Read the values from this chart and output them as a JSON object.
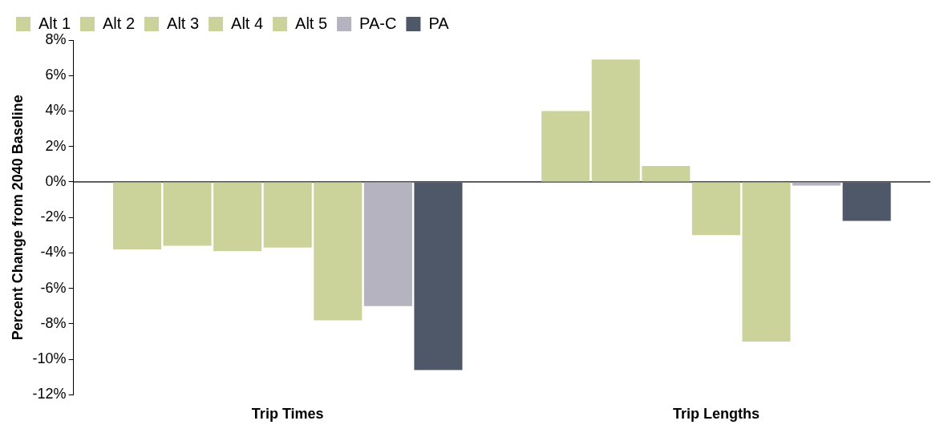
{
  "chart_data": {
    "type": "bar",
    "ylabel": "Percent Change from 2040 Baseline",
    "categories": [
      "Trip Times",
      "Trip Lengths"
    ],
    "series": [
      {
        "name": "Alt 1",
        "color": "#ccd39a",
        "values": [
          -3.8,
          4.0
        ]
      },
      {
        "name": "Alt 2",
        "color": "#ccd39a",
        "values": [
          -3.6,
          6.9
        ]
      },
      {
        "name": "Alt 3",
        "color": "#ccd39a",
        "values": [
          -3.9,
          0.9
        ]
      },
      {
        "name": "Alt 4",
        "color": "#ccd39a",
        "values": [
          -3.7,
          -3.0
        ]
      },
      {
        "name": "Alt 5",
        "color": "#ccd39a",
        "values": [
          -7.8,
          -9.0
        ]
      },
      {
        "name": "PA-C",
        "color": "#b4b3bf",
        "values": [
          -7.0,
          -0.2
        ]
      },
      {
        "name": "PA",
        "color": "#4f5869",
        "values": [
          -10.6,
          -2.2
        ]
      }
    ],
    "ylim": [
      -12,
      8
    ],
    "yticks": [
      {
        "value": -12,
        "label": "-12%"
      },
      {
        "value": -10,
        "label": "-10%"
      },
      {
        "value": -8,
        "label": "-8%"
      },
      {
        "value": -6,
        "label": "-6%"
      },
      {
        "value": -4,
        "label": "-4%"
      },
      {
        "value": -2,
        "label": "-2%"
      },
      {
        "value": 0,
        "label": "0%"
      },
      {
        "value": 2,
        "label": "2%"
      },
      {
        "value": 4,
        "label": "4%"
      },
      {
        "value": 6,
        "label": "6%"
      },
      {
        "value": 8,
        "label": "8%"
      }
    ],
    "ref_lines": [
      {
        "axis": "y",
        "value": 0,
        "color": "#000000"
      }
    ],
    "grid": false,
    "legend": "top left"
  }
}
